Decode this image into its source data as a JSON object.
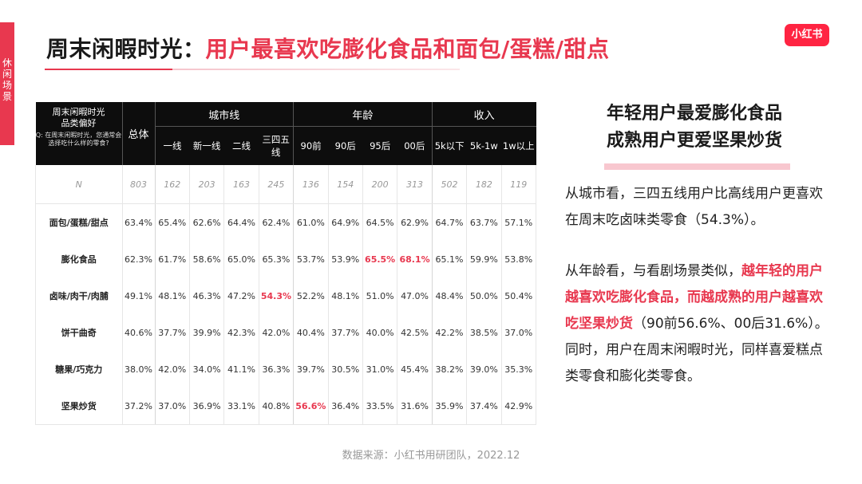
{
  "side_tab": [
    "休",
    "闲",
    "场",
    "景"
  ],
  "title": {
    "prefix": "周末闲暇时光：",
    "highlight": "用户最喜欢吃膨化食品和面包/蛋糕/甜点"
  },
  "logo": "小红书",
  "table": {
    "category_header": "周末闲暇时光\n品类偏好",
    "question": "Q: 在周末闲暇时光，您通常会选择吃什么样的零食?",
    "total_header": "总体",
    "groups": [
      "城市线",
      "年龄",
      "收入"
    ],
    "subheaders": [
      "一线",
      "新一线",
      "二线",
      "三四五线",
      "90前",
      "90后",
      "95后",
      "00后",
      "5k以下",
      "5k-1w",
      "1w以上"
    ],
    "n_row": {
      "label": "N",
      "values": [
        "803",
        "162",
        "203",
        "163",
        "245",
        "136",
        "154",
        "200",
        "313",
        "502",
        "182",
        "119"
      ]
    },
    "rows": [
      {
        "label": "面包/蛋糕/甜点",
        "values": [
          "63.4%",
          "65.4%",
          "62.6%",
          "64.4%",
          "62.4%",
          "61.0%",
          "64.9%",
          "64.5%",
          "62.9%",
          "64.7%",
          "63.7%",
          "57.1%"
        ]
      },
      {
        "label": "膨化食品",
        "values": [
          "62.3%",
          "61.7%",
          "58.6%",
          "65.0%",
          "65.3%",
          "53.7%",
          "53.9%",
          "65.5%",
          "68.1%",
          "65.1%",
          "59.9%",
          "53.8%"
        ]
      },
      {
        "label": "卤味/肉干/肉脯",
        "values": [
          "49.1%",
          "48.1%",
          "46.3%",
          "47.2%",
          "54.3%",
          "52.2%",
          "48.1%",
          "51.0%",
          "47.0%",
          "48.4%",
          "50.0%",
          "50.4%"
        ]
      },
      {
        "label": "饼干曲奇",
        "values": [
          "40.6%",
          "37.7%",
          "39.9%",
          "42.3%",
          "42.0%",
          "40.4%",
          "37.7%",
          "40.0%",
          "42.5%",
          "42.2%",
          "38.5%",
          "37.0%"
        ]
      },
      {
        "label": "糖果/巧克力",
        "values": [
          "38.0%",
          "42.0%",
          "34.0%",
          "41.1%",
          "36.3%",
          "39.7%",
          "30.5%",
          "31.0%",
          "45.4%",
          "38.2%",
          "39.0%",
          "35.3%"
        ]
      },
      {
        "label": "坚果炒货",
        "values": [
          "37.2%",
          "37.0%",
          "36.9%",
          "33.1%",
          "40.8%",
          "56.6%",
          "36.4%",
          "33.5%",
          "31.6%",
          "35.9%",
          "37.4%",
          "42.9%"
        ]
      }
    ]
  },
  "right": {
    "headline_1": "年轻用户最爱膨化食品",
    "headline_2": "成熟用户更爱坚果炒货",
    "para1": "从城市看，三四五线用户比高线用户更喜欢在周末吃卤味类零食（54.3%）。",
    "para2_a": "从年龄看，与看剧场景类似，",
    "para2_em": "越年轻的用户越喜欢吃膨化食品，而越成熟的用户越喜欢吃坚果炒货",
    "para2_b": "（90前56.6%、00后31.6%）。同时，用户在周末闲暇时光，同样喜爱糕点类零食和膨化类零食。"
  },
  "footer": "数据来源：小红书用研团队，2022.12",
  "colors": {
    "accent": "#e8384f",
    "header_bg": "#0d0d0d",
    "logo_bg": "#ff2442"
  }
}
